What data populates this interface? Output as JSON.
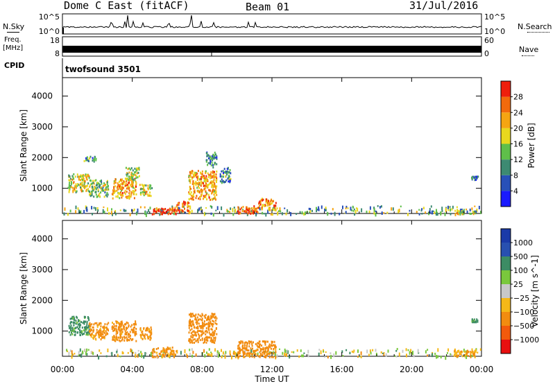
{
  "header": {
    "station": "Dome C East (fitACF)",
    "beam": "Beam 01",
    "date": "31/Jul/2016"
  },
  "top_panels": {
    "nsky_label": "N.Sky",
    "nsearch_label": "N.Search",
    "nsky_tick_top": "10^5",
    "nsky_tick_bottom": "10^0",
    "freq_label_1": "Freq.",
    "freq_label_2": "[MHz]",
    "freq_tick_top": "18",
    "freq_tick_bottom": "8",
    "nave_label": "Nave",
    "nave_tick_top": "60",
    "nave_tick_bottom": "0",
    "cpid_label": "CPID",
    "cpid_value": "twofsound 3501"
  },
  "colors": {
    "power_scale": [
      "#1a1aff",
      "#2850b8",
      "#3d8a72",
      "#5fbf4a",
      "#e8d81e",
      "#f5a512",
      "#f26a0c",
      "#ee1e0c"
    ],
    "velocity_scale": [
      "#e81010",
      "#f25a0c",
      "#f28c10",
      "#f5b818",
      "#c8c8c8",
      "#7ac83c",
      "#3c8c64",
      "#2850b0",
      "#1a3aa8"
    ]
  },
  "chart_data": [
    {
      "type": "heatmap",
      "title": "",
      "xlabel": "Time UT",
      "ylabel": "Slant Range [km]",
      "xlim": [
        0,
        24
      ],
      "ylim": [
        180,
        4600
      ],
      "x_tick_labels": [
        "00:00",
        "04:00",
        "08:00",
        "12:00",
        "16:00",
        "20:00",
        "00:00"
      ],
      "y_tick_labels": [
        "1000",
        "2000",
        "3000",
        "4000"
      ],
      "colorbar": {
        "label": "Power [dB]",
        "range": [
          0,
          32
        ],
        "tick_labels": [
          "4",
          "8",
          "12",
          "16",
          "20",
          "24",
          "28"
        ]
      },
      "scatter_regions": [
        {
          "t_start": 0.3,
          "t_end": 1.5,
          "r_min": 900,
          "r_max": 1500,
          "value": 18
        },
        {
          "t_start": 1.5,
          "t_end": 2.6,
          "r_min": 750,
          "r_max": 1300,
          "value": 14
        },
        {
          "t_start": 1.2,
          "t_end": 1.9,
          "r_min": 1900,
          "r_max": 2100,
          "value": 10
        },
        {
          "t_start": 2.8,
          "t_end": 4.2,
          "r_min": 700,
          "r_max": 1350,
          "value": 22
        },
        {
          "t_start": 3.6,
          "t_end": 4.4,
          "r_min": 1300,
          "r_max": 1700,
          "value": 16
        },
        {
          "t_start": 4.4,
          "t_end": 5.1,
          "r_min": 750,
          "r_max": 1150,
          "value": 18
        },
        {
          "t_start": 5.1,
          "t_end": 6.5,
          "r_min": 180,
          "r_max": 400,
          "value": 29
        },
        {
          "t_start": 6.5,
          "t_end": 7.2,
          "r_min": 250,
          "r_max": 600,
          "value": 26
        },
        {
          "t_start": 7.2,
          "t_end": 8.8,
          "r_min": 650,
          "r_max": 1600,
          "value": 22
        },
        {
          "t_start": 8.2,
          "t_end": 8.8,
          "r_min": 1700,
          "r_max": 2200,
          "value": 9
        },
        {
          "t_start": 9.0,
          "t_end": 9.6,
          "r_min": 1200,
          "r_max": 1700,
          "value": 10
        },
        {
          "t_start": 10.0,
          "t_end": 11.2,
          "r_min": 180,
          "r_max": 450,
          "value": 27
        },
        {
          "t_start": 11.2,
          "t_end": 12.2,
          "r_min": 300,
          "r_max": 700,
          "value": 24
        },
        {
          "t_start": 22.4,
          "t_end": 23.6,
          "r_min": 180,
          "r_max": 300,
          "value": 18
        },
        {
          "t_start": 23.4,
          "t_end": 23.8,
          "r_min": 1300,
          "r_max": 1420,
          "value": 8
        }
      ]
    },
    {
      "type": "heatmap",
      "title": "",
      "xlabel": "Time UT",
      "ylabel": "Slant Range [km]",
      "xlim": [
        0,
        24
      ],
      "ylim": [
        180,
        4600
      ],
      "x_tick_labels": [
        "00:00",
        "04:00",
        "08:00",
        "12:00",
        "16:00",
        "20:00",
        "00:00"
      ],
      "y_tick_labels": [
        "1000",
        "2000",
        "3000",
        "4000"
      ],
      "colorbar": {
        "label": "Velocity [m s^-1]",
        "tick_labels": [
          "1000",
          "500",
          "100",
          "25",
          "−25",
          "−100",
          "−500",
          "−1000"
        ]
      },
      "scatter_regions": [
        {
          "t_start": 0.3,
          "t_end": 1.5,
          "r_min": 900,
          "r_max": 1500,
          "value": 200
        },
        {
          "t_start": 1.5,
          "t_end": 2.6,
          "r_min": 750,
          "r_max": 1300,
          "value": -150
        },
        {
          "t_start": 2.8,
          "t_end": 4.2,
          "r_min": 700,
          "r_max": 1350,
          "value": -200
        },
        {
          "t_start": 4.4,
          "t_end": 5.1,
          "r_min": 750,
          "r_max": 1150,
          "value": -150
        },
        {
          "t_start": 5.1,
          "t_end": 6.5,
          "r_min": 180,
          "r_max": 500,
          "value": -150
        },
        {
          "t_start": 7.2,
          "t_end": 8.8,
          "r_min": 650,
          "r_max": 1600,
          "value": -250
        },
        {
          "t_start": 10.0,
          "t_end": 12.2,
          "r_min": 180,
          "r_max": 700,
          "value": -300
        },
        {
          "t_start": 22.4,
          "t_end": 23.6,
          "r_min": 180,
          "r_max": 400,
          "value": -150
        },
        {
          "t_start": 23.4,
          "t_end": 23.8,
          "r_min": 1300,
          "r_max": 1420,
          "value": 200
        }
      ]
    }
  ]
}
